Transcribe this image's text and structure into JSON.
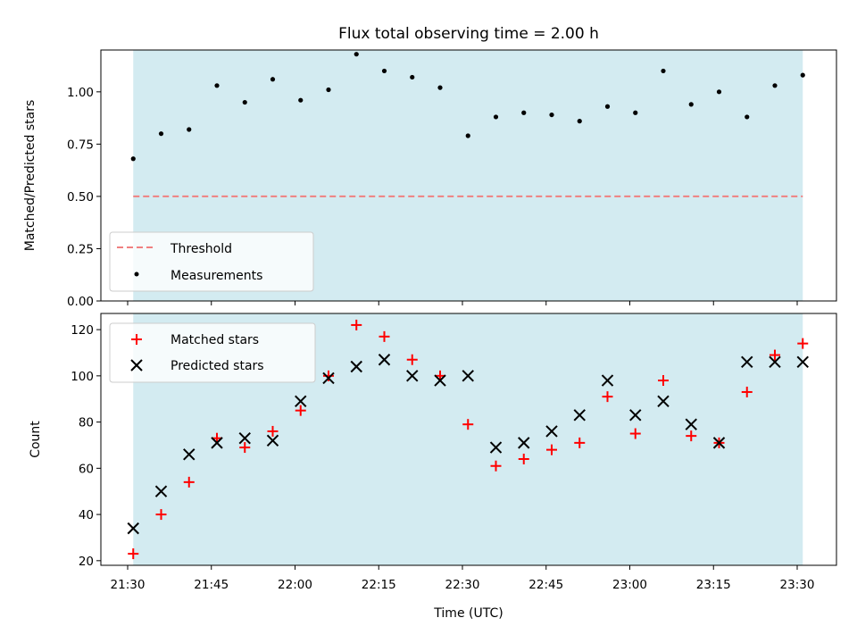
{
  "chart_data": [
    {
      "type": "scatter",
      "title": "Flux total observing time = 2.00 h",
      "ylabel": "Matched/Predicted stars",
      "xlabel": "",
      "ylim": [
        0,
        1.2
      ],
      "yticks": [
        "0.00",
        "0.25",
        "0.50",
        "0.75",
        "1.00"
      ],
      "threshold": 0.5,
      "legend": {
        "placement": "lower-left",
        "entries": [
          "Threshold",
          "Measurements"
        ]
      },
      "x": [
        "21:31",
        "21:36",
        "21:41",
        "21:46",
        "21:51",
        "21:56",
        "22:01",
        "22:06",
        "22:11",
        "22:16",
        "22:21",
        "22:26",
        "22:31",
        "22:36",
        "22:41",
        "22:46",
        "22:51",
        "22:56",
        "23:01",
        "23:06",
        "23:11",
        "23:16",
        "23:21",
        "23:26",
        "23:31"
      ],
      "series": [
        {
          "name": "Measurements",
          "values": [
            0.68,
            0.8,
            0.82,
            1.03,
            0.95,
            1.06,
            0.96,
            1.01,
            1.18,
            1.1,
            1.07,
            1.02,
            0.79,
            0.88,
            0.9,
            0.89,
            0.86,
            0.93,
            0.9,
            1.1,
            0.94,
            1.0,
            0.88,
            1.03,
            1.08
          ]
        }
      ],
      "colors": {
        "threshold": "#f08080",
        "measurements": "#000000",
        "band": "#d3ebf1"
      }
    },
    {
      "type": "scatter",
      "ylabel": "Count",
      "xlabel": "Time (UTC)",
      "ylim": [
        18,
        127
      ],
      "yticks": [
        "20",
        "40",
        "60",
        "80",
        "100",
        "120"
      ],
      "xticks": [
        "21:30",
        "21:45",
        "22:00",
        "22:15",
        "22:30",
        "22:45",
        "23:00",
        "23:15",
        "23:30"
      ],
      "legend": {
        "placement": "top-left",
        "entries": [
          "Matched stars",
          "Predicted stars"
        ]
      },
      "x": [
        "21:31",
        "21:36",
        "21:41",
        "21:46",
        "21:51",
        "21:56",
        "22:01",
        "22:06",
        "22:11",
        "22:16",
        "22:21",
        "22:26",
        "22:31",
        "22:36",
        "22:41",
        "22:46",
        "22:51",
        "22:56",
        "23:01",
        "23:06",
        "23:11",
        "23:16",
        "23:21",
        "23:26",
        "23:31"
      ],
      "series": [
        {
          "name": "Matched stars",
          "marker": "plus",
          "values": [
            23,
            40,
            54,
            73,
            69,
            76,
            85,
            100,
            122,
            117,
            107,
            100,
            79,
            61,
            64,
            68,
            71,
            91,
            75,
            98,
            74,
            71,
            93,
            109,
            114
          ]
        },
        {
          "name": "Predicted stars",
          "marker": "x",
          "values": [
            34,
            50,
            66,
            71,
            73,
            72,
            89,
            99,
            104,
            107,
            100,
            98,
            100,
            69,
            71,
            76,
            83,
            98,
            83,
            89,
            79,
            71,
            106,
            106,
            106
          ]
        }
      ],
      "colors": {
        "matched": "#ff0000",
        "predicted": "#000000",
        "band": "#d3ebf1"
      }
    }
  ]
}
